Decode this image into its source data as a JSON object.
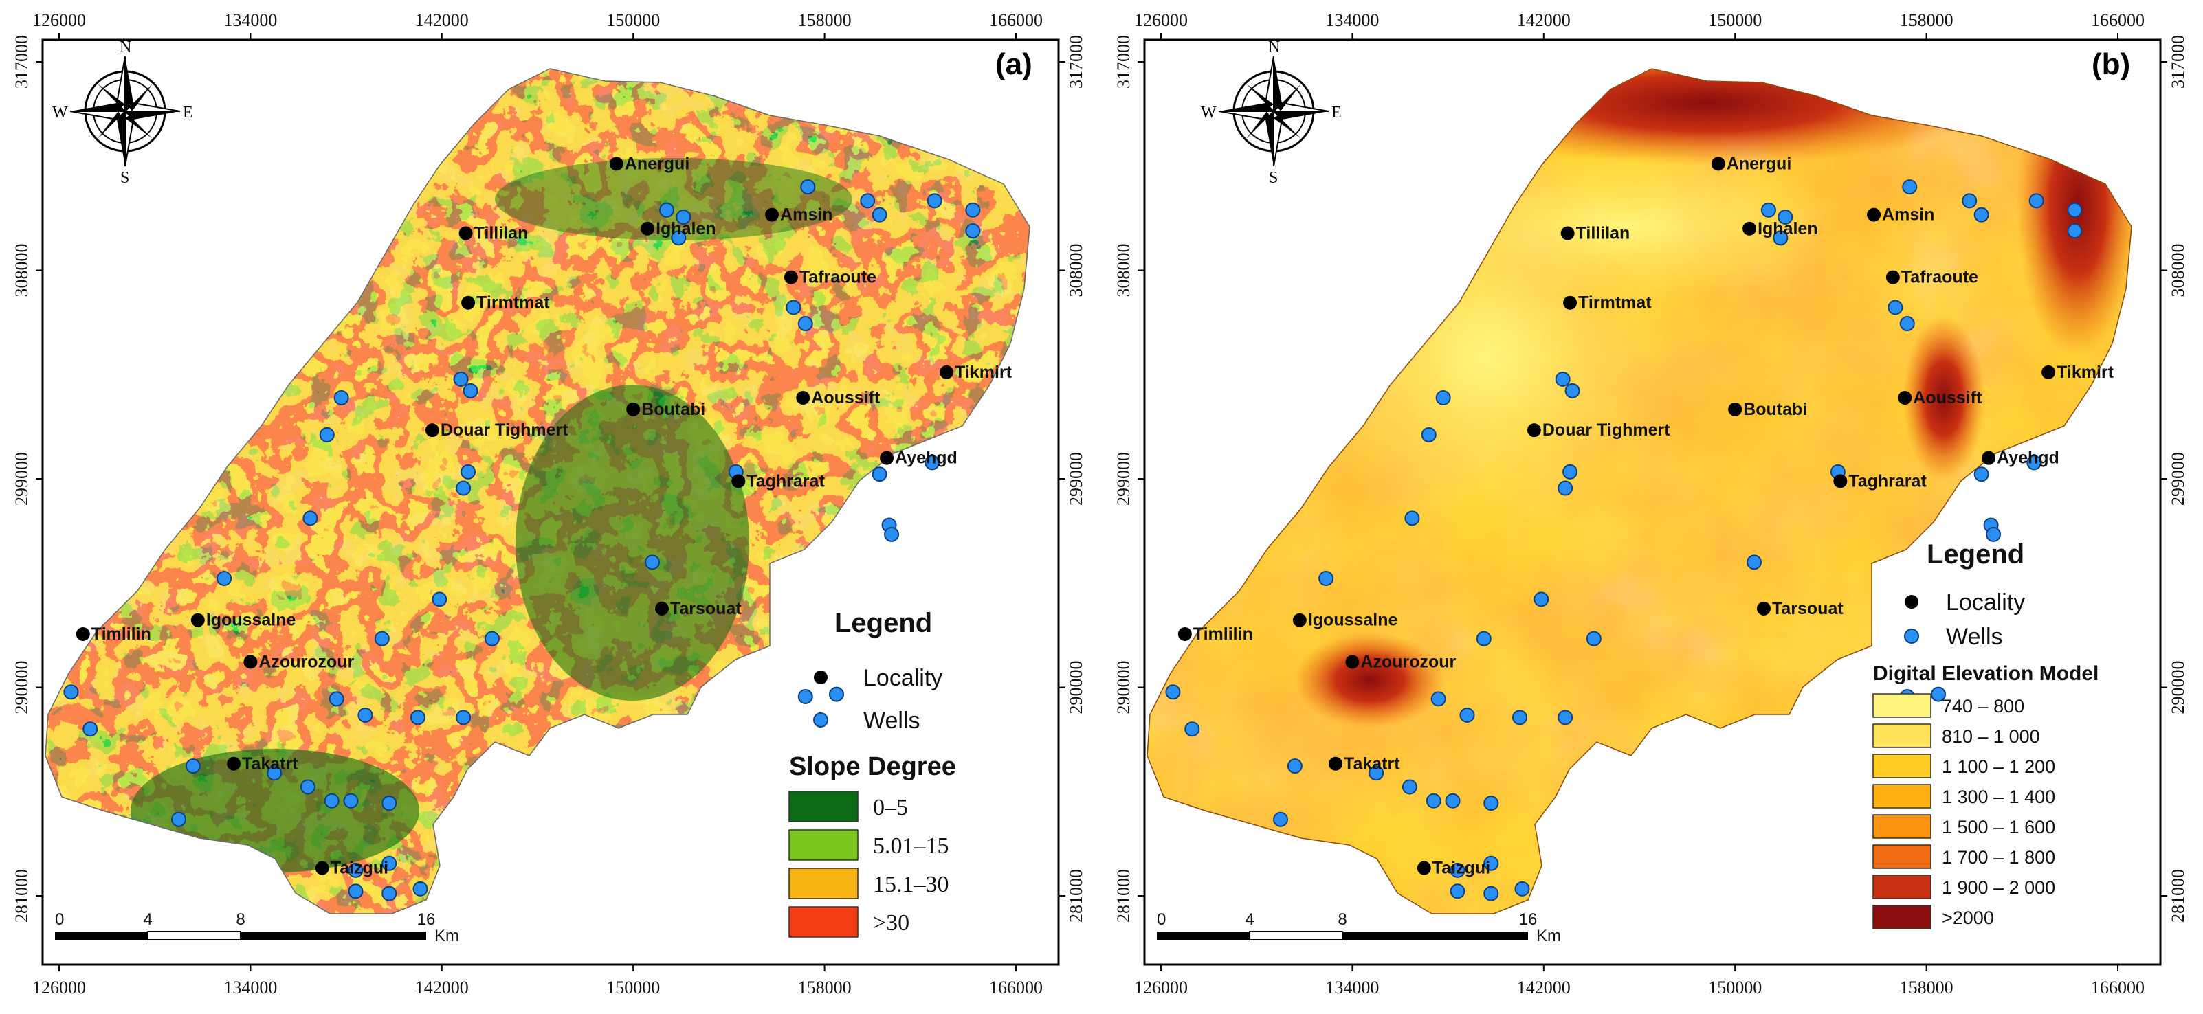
{
  "colors": {
    "slope": [
      "#0b6a14",
      "#7ac61e",
      "#f6b312",
      "#f53d14"
    ],
    "dem": [
      "#fff57e",
      "#ffe45a",
      "#ffcc24",
      "#ffb013",
      "#fd9414",
      "#ef6a10",
      "#c83012",
      "#8b0e0e"
    ],
    "locality": "#000000",
    "wells": "#2a8ff2",
    "wells_stroke": "#0c3f84"
  },
  "x_ticks": [
    "126000",
    "134000",
    "142000",
    "150000",
    "158000",
    "166000"
  ],
  "y_ticks": [
    "317000",
    "308000",
    "299000",
    "290000",
    "281000"
  ],
  "panels": [
    {
      "label": "(a)",
      "compass": {
        "n": "N",
        "s": "S",
        "e": "E",
        "w": "W",
        "icon": "compass-rose-icon"
      },
      "legend": {
        "title": "Legend",
        "locality": "Locality",
        "wells": "Wells",
        "classes_title": "Slope Degree",
        "classes": [
          "0–5",
          "5.01–15",
          "15.1–30",
          ">30"
        ]
      },
      "scale": {
        "labels": [
          "0",
          "4",
          "8",
          "16"
        ],
        "unit": "Km"
      }
    },
    {
      "label": "(b)",
      "compass": {
        "n": "N",
        "s": "S",
        "e": "E",
        "w": "W",
        "icon": "compass-rose-icon"
      },
      "legend": {
        "title": "Legend",
        "locality": "Locality",
        "wells": "Wells",
        "classes_title": "Digital Elevation Model",
        "classes": [
          "740 – 800",
          "810 – 1 000",
          "1 100 – 1 200",
          "1 300 – 1 400",
          "1 500 – 1 600",
          "1 700 – 1 800",
          "1 900 – 2 000",
          ">2000"
        ]
      },
      "scale": {
        "labels": [
          "0",
          "4",
          "8",
          "16"
        ],
        "unit": "Km"
      }
    }
  ],
  "localities": [
    {
      "name": "Anergui",
      "x": 149300,
      "y": 312600
    },
    {
      "name": "Amsin",
      "x": 155800,
      "y": 310400
    },
    {
      "name": "Ighalen",
      "x": 150600,
      "y": 309800
    },
    {
      "name": "Tillilan",
      "x": 143000,
      "y": 309600
    },
    {
      "name": "Tafraoute",
      "x": 156600,
      "y": 307700
    },
    {
      "name": "Tirmtmat",
      "x": 143100,
      "y": 306600
    },
    {
      "name": "Tikmirt",
      "x": 163100,
      "y": 303600
    },
    {
      "name": "Aoussift",
      "x": 157100,
      "y": 302500
    },
    {
      "name": "Boutabi",
      "x": 150000,
      "y": 302000
    },
    {
      "name": "Douar Tighmert",
      "x": 141600,
      "y": 301100
    },
    {
      "name": "Ayehgd",
      "x": 160600,
      "y": 299900
    },
    {
      "name": "Taghrarat",
      "x": 154400,
      "y": 298900
    },
    {
      "name": "Tarsouat",
      "x": 151200,
      "y": 293400
    },
    {
      "name": "Igoussalne",
      "x": 131800,
      "y": 292900
    },
    {
      "name": "Timlilin",
      "x": 127000,
      "y": 292300
    },
    {
      "name": "Azourozour",
      "x": 134000,
      "y": 291100
    },
    {
      "name": "Takatrt",
      "x": 133300,
      "y": 286700
    },
    {
      "name": "Taizgui",
      "x": 137000,
      "y": 282200
    }
  ],
  "wells": [
    {
      "x": 151400,
      "y": 310600
    },
    {
      "x": 152100,
      "y": 310300
    },
    {
      "x": 151900,
      "y": 309400
    },
    {
      "x": 157300,
      "y": 311600
    },
    {
      "x": 159800,
      "y": 311000
    },
    {
      "x": 160300,
      "y": 310400
    },
    {
      "x": 162600,
      "y": 311000
    },
    {
      "x": 164200,
      "y": 310600
    },
    {
      "x": 164200,
      "y": 309700
    },
    {
      "x": 156700,
      "y": 306400
    },
    {
      "x": 157200,
      "y": 305700
    },
    {
      "x": 142800,
      "y": 303300
    },
    {
      "x": 143200,
      "y": 302800
    },
    {
      "x": 137800,
      "y": 302500
    },
    {
      "x": 137200,
      "y": 300900
    },
    {
      "x": 143100,
      "y": 299300
    },
    {
      "x": 142900,
      "y": 298600
    },
    {
      "x": 154300,
      "y": 299300
    },
    {
      "x": 160300,
      "y": 299200
    },
    {
      "x": 162500,
      "y": 299700
    },
    {
      "x": 160700,
      "y": 297000
    },
    {
      "x": 160800,
      "y": 296600
    },
    {
      "x": 136500,
      "y": 297300
    },
    {
      "x": 150800,
      "y": 295400
    },
    {
      "x": 132900,
      "y": 294700
    },
    {
      "x": 141900,
      "y": 293800
    },
    {
      "x": 144100,
      "y": 292100
    },
    {
      "x": 139500,
      "y": 292100
    },
    {
      "x": 157200,
      "y": 289600
    },
    {
      "x": 158500,
      "y": 289700
    },
    {
      "x": 126500,
      "y": 289800
    },
    {
      "x": 127300,
      "y": 288200
    },
    {
      "x": 137600,
      "y": 289500
    },
    {
      "x": 138800,
      "y": 288800
    },
    {
      "x": 141000,
      "y": 288700
    },
    {
      "x": 142900,
      "y": 288700
    },
    {
      "x": 131600,
      "y": 286600
    },
    {
      "x": 135000,
      "y": 286300
    },
    {
      "x": 136400,
      "y": 285700
    },
    {
      "x": 137400,
      "y": 285100
    },
    {
      "x": 138200,
      "y": 285100
    },
    {
      "x": 139800,
      "y": 285000
    },
    {
      "x": 131000,
      "y": 284300
    },
    {
      "x": 138400,
      "y": 282100
    },
    {
      "x": 139800,
      "y": 282400
    },
    {
      "x": 138400,
      "y": 281200
    },
    {
      "x": 139800,
      "y": 281100
    },
    {
      "x": 141100,
      "y": 281300
    }
  ]
}
